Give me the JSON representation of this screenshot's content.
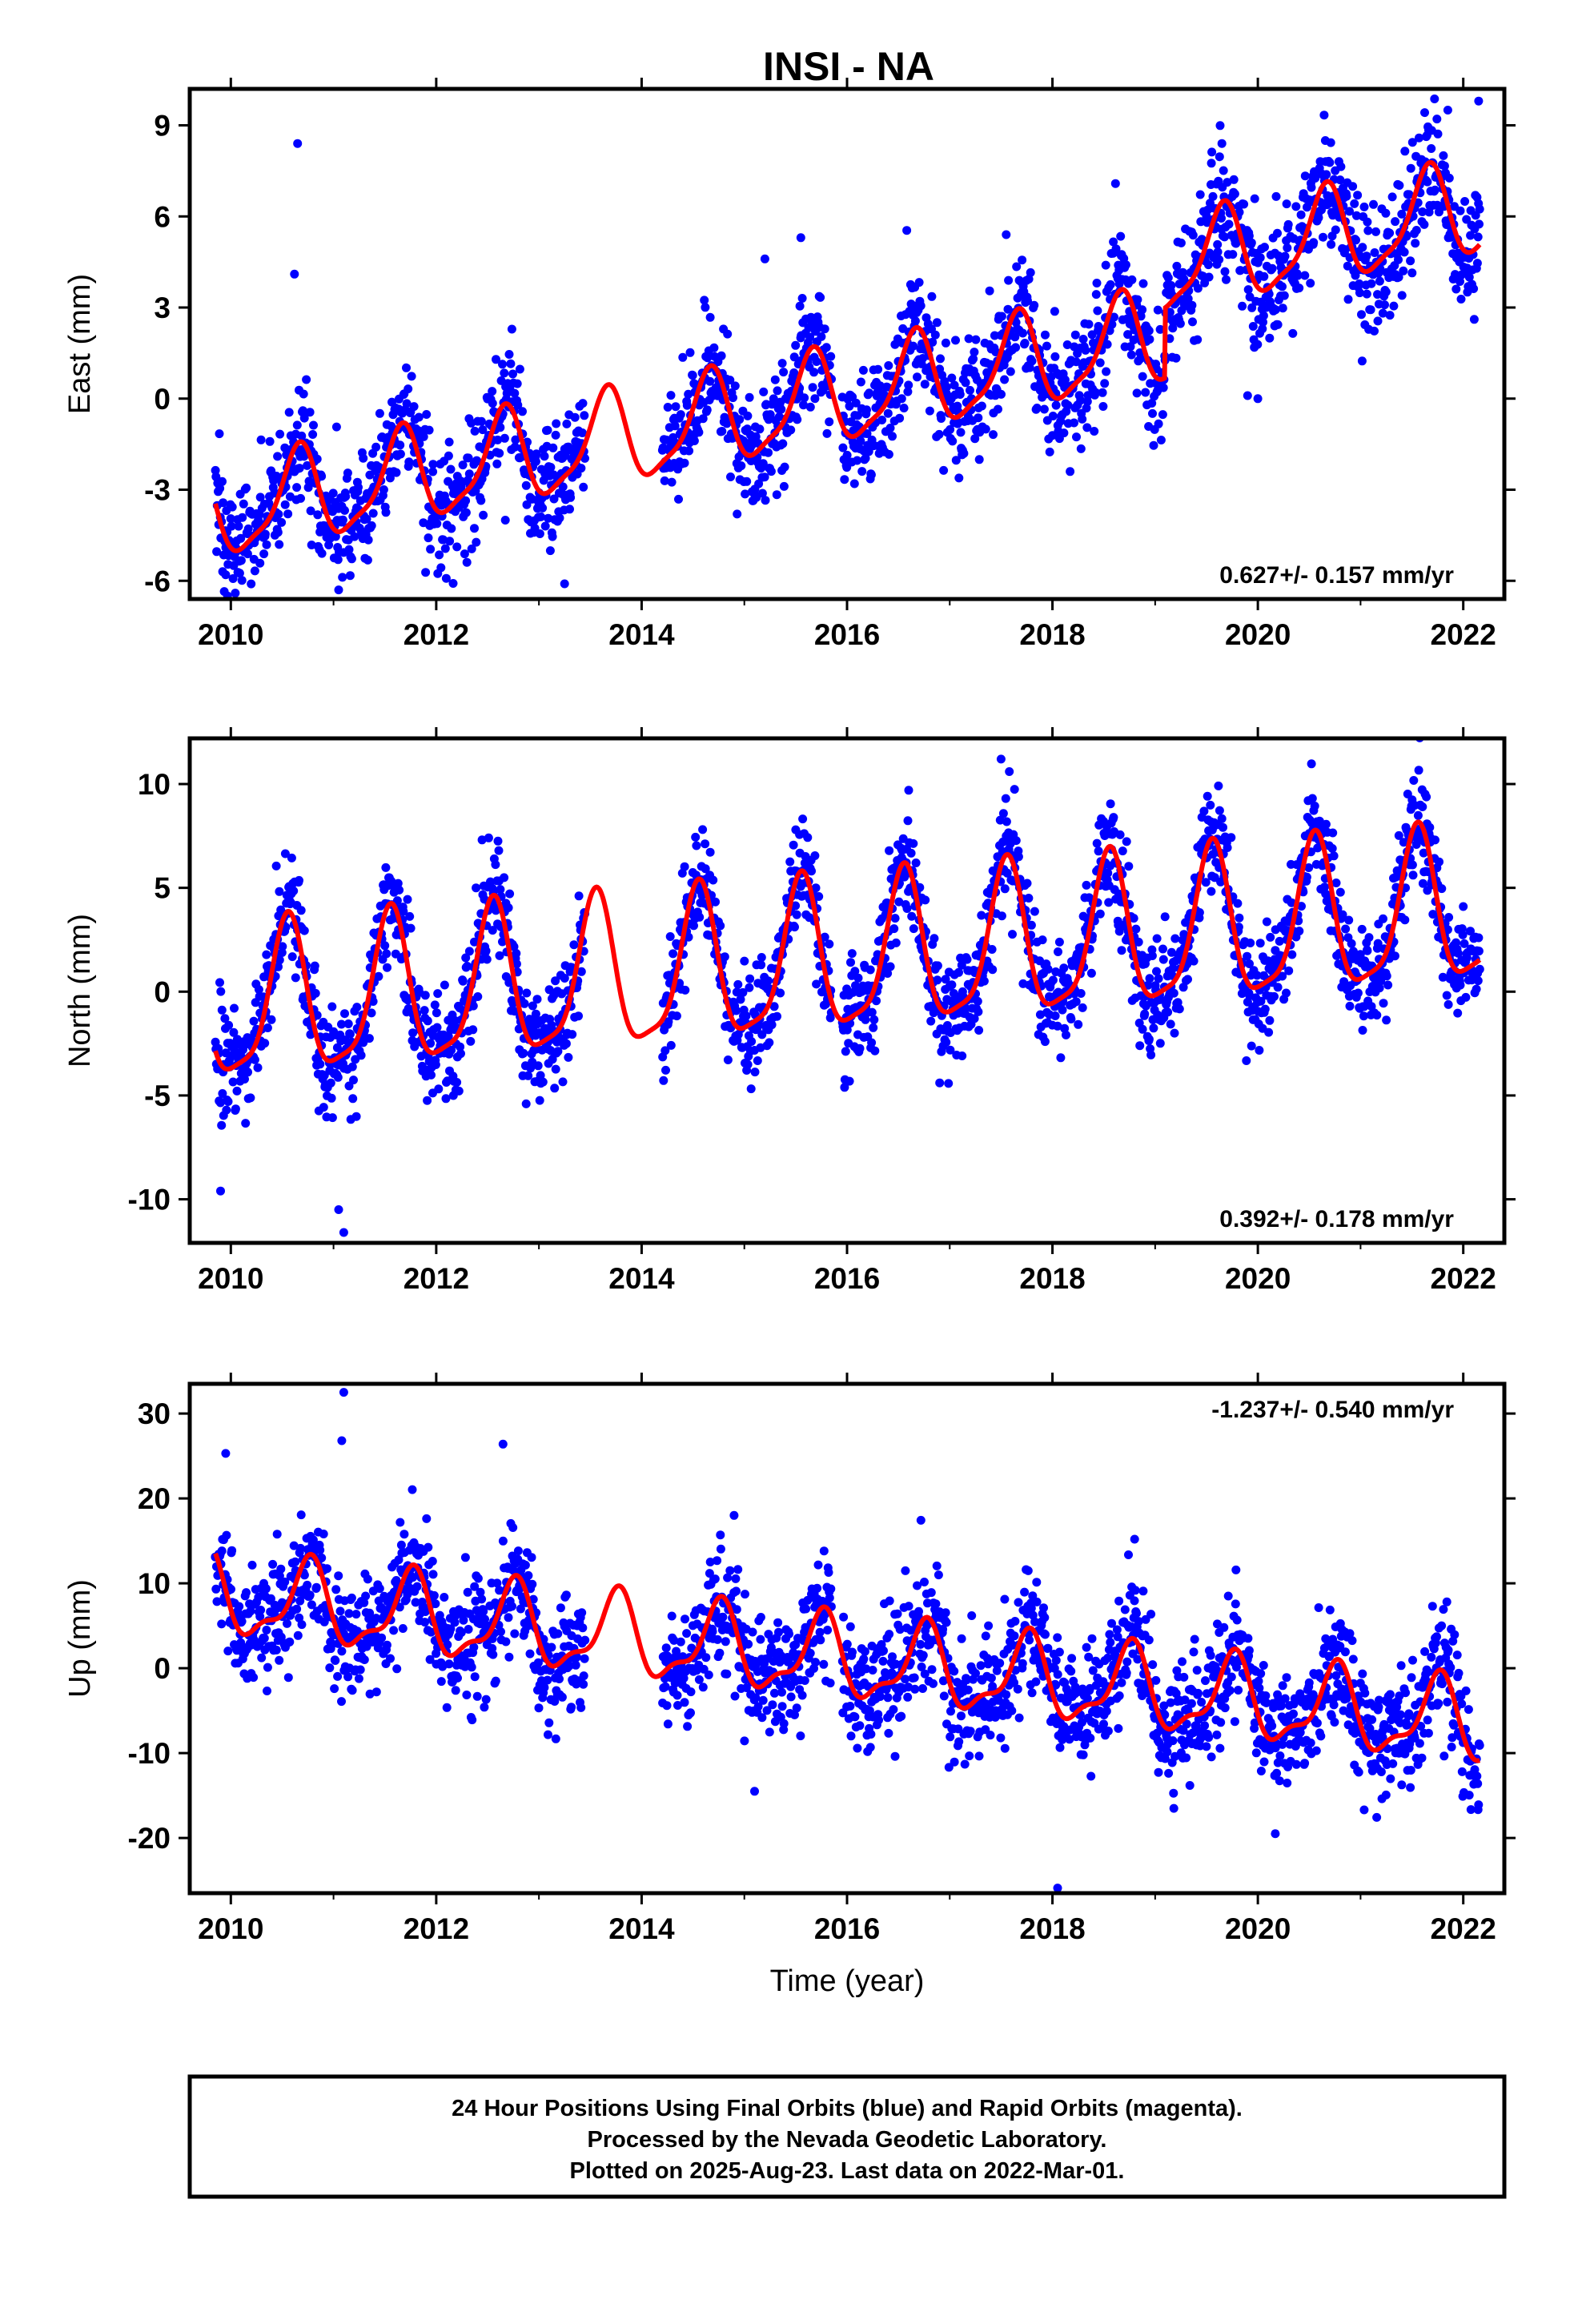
{
  "title": "INSI - NA",
  "colors": {
    "final_orbits": "#0000ff",
    "model": "#ff0000",
    "frame": "#000000"
  },
  "chart_data": [
    {
      "type": "scatter",
      "name": "east",
      "ylabel": "East (mm)",
      "xlabel": "",
      "xlim": [
        2009.6,
        2022.4
      ],
      "ylim": [
        -6.6,
        10.2
      ],
      "xticks": [
        "2010",
        "2012",
        "2014",
        "2016",
        "2018",
        "2020",
        "2022"
      ],
      "yticks": [
        "-6",
        "-3",
        "0",
        "3",
        "6",
        "9"
      ],
      "rate_label": "0.627+/- 0.157 mm/yr",
      "rate_position": "bottom-right",
      "grid": false,
      "data_span": [
        2009.85,
        2022.16
      ],
      "gap": [
        2013.45,
        2014.2
      ],
      "model": {
        "base_at_2009_85": -3.8,
        "trend_mm_per_yr": 0.627,
        "offsets": [
          {
            "epoch": 2019.1,
            "step": 2.3
          }
        ],
        "annual_amplitude": 1.5,
        "annual_peak": 2009.65,
        "semiannual_amplitude": 0.4,
        "semiannual_peak": 2009.7
      },
      "scatter_sigma": 1.0,
      "outliers": [
        [
          2010.65,
          8.4
        ],
        [
          2010.62,
          4.1
        ],
        [
          2015.55,
          5.3
        ],
        [
          2017.55,
          5.4
        ],
        [
          2015.2,
          4.6
        ],
        [
          2022.15,
          9.8
        ],
        [
          2011.05,
          -6.3
        ],
        [
          2013.25,
          -6.1
        ],
        [
          2009.95,
          -5.8
        ],
        [
          2019.65,
          8.4
        ],
        [
          2021.85,
          9.5
        ],
        [
          2019.9,
          0.1
        ],
        [
          2020.0,
          0.0
        ]
      ]
    },
    {
      "type": "scatter",
      "name": "north",
      "ylabel": "North (mm)",
      "xlabel": "",
      "xlim": [
        2009.6,
        2022.4
      ],
      "ylim": [
        -12.1,
        12.2
      ],
      "xticks": [
        "2010",
        "2012",
        "2014",
        "2016",
        "2018",
        "2020",
        "2022"
      ],
      "yticks": [
        "-10",
        "-5",
        "0",
        "5",
        "10"
      ],
      "rate_label": "0.392+/- 0.178 mm/yr",
      "rate_position": "bottom-right",
      "grid": false,
      "data_span": [
        2009.85,
        2022.16
      ],
      "gap": [
        2013.45,
        2014.2
      ],
      "model": {
        "base_at_2009_85": -0.9,
        "trend_mm_per_yr": 0.392,
        "offsets": [],
        "annual_amplitude": 3.6,
        "annual_peak": 2009.55,
        "semiannual_amplitude": 0.9,
        "semiannual_peak": 2009.57
      },
      "scatter_sigma": 1.3,
      "outliers": [
        [
          2011.1,
          -11.6
        ],
        [
          2011.05,
          -10.5
        ],
        [
          2017.5,
          11.2
        ],
        [
          2017.58,
          10.6
        ],
        [
          2016.6,
          9.7
        ],
        [
          2009.9,
          -9.6
        ],
        [
          2015.5,
          7.8
        ],
        [
          2022.0,
          4.1
        ]
      ]
    },
    {
      "type": "scatter",
      "name": "up",
      "ylabel": "Up (mm)",
      "xlabel": "Time (year)",
      "xlim": [
        2009.6,
        2022.4
      ],
      "ylim": [
        -26.5,
        33.5
      ],
      "xticks": [
        "2010",
        "2012",
        "2014",
        "2016",
        "2018",
        "2020",
        "2022"
      ],
      "yticks": [
        "-20",
        "-10",
        "0",
        "10",
        "20",
        "30"
      ],
      "rate_label": "-1.237+/- 0.540 mm/yr",
      "rate_position": "top-right",
      "grid": false,
      "data_span": [
        2009.85,
        2022.16
      ],
      "gap": [
        2013.45,
        2014.2
      ],
      "model": {
        "base_at_2009_85": 8.5,
        "trend_mm_per_yr": -1.237,
        "offsets": [],
        "annual_amplitude": 4.5,
        "annual_peak": 2009.75,
        "semiannual_amplitude": 1.7,
        "semiannual_peak": 2009.8
      },
      "scatter_sigma": 3.5,
      "outliers": [
        [
          2011.1,
          32.5
        ],
        [
          2011.08,
          26.8
        ],
        [
          2018.05,
          -25.9
        ],
        [
          2018.8,
          15.2
        ],
        [
          2014.9,
          18.0
        ],
        [
          2009.95,
          25.3
        ],
        [
          2012.65,
          26.4
        ],
        [
          2015.1,
          -14.5
        ]
      ]
    }
  ],
  "footer": {
    "lines": [
      "24 Hour Positions Using Final Orbits (blue) and Rapid Orbits (magenta).",
      "Processed by the Nevada Geodetic Laboratory.",
      "Plotted on 2025-Aug-23. Last data on 2022-Mar-01."
    ]
  }
}
